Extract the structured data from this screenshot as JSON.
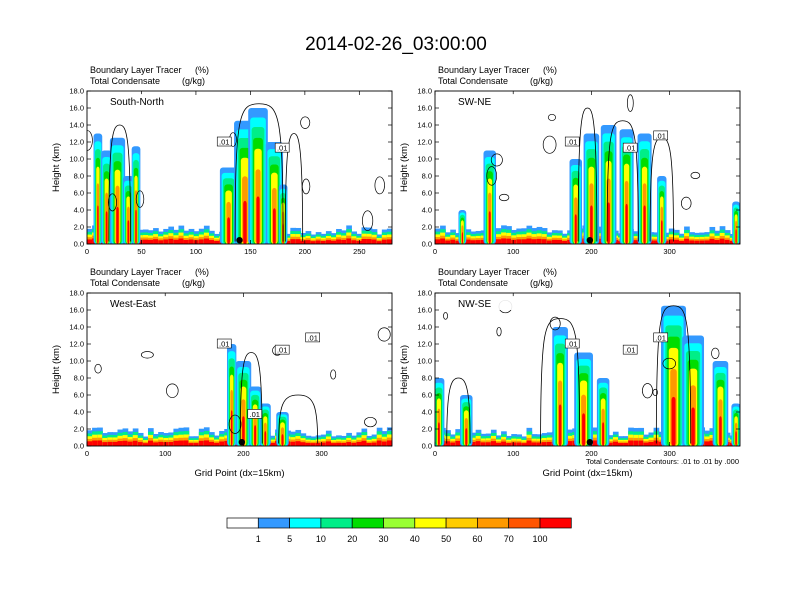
{
  "title": "2014-02-26_03:00:00",
  "chart_data": [
    {
      "type": "heatmap",
      "panel_name": "South-North",
      "subtitle_left_1": "Boundary Layer Tracer",
      "subtitle_right_1": "(%)",
      "subtitle_left_2": "Total Condensate",
      "subtitle_right_2": "(g/kg)",
      "ylabel": "Height (km)",
      "xlabel": "",
      "ylim": [
        0,
        18
      ],
      "xlim": [
        0,
        280
      ],
      "xticks": [
        "0",
        "50",
        "100",
        "150",
        "200",
        "250"
      ],
      "xtick_values": [
        0,
        50,
        100,
        150,
        200,
        250
      ],
      "yticks": [
        "0.0",
        "2.0",
        "4.0",
        "6.0",
        "8.0",
        "10.0",
        "12.0",
        "14.0",
        "16.0",
        "18.0"
      ],
      "contour_labels": [
        ".01",
        ".01"
      ],
      "marker_x": 140,
      "columns": [
        {
          "center": 10,
          "width": 4,
          "top": 13
        },
        {
          "center": 18,
          "width": 5,
          "top": 11
        },
        {
          "center": 28,
          "width": 7,
          "top": 12.5
        },
        {
          "center": 38,
          "width": 5,
          "top": 8
        },
        {
          "center": 45,
          "width": 4,
          "top": 11.5
        },
        {
          "center": 130,
          "width": 8,
          "top": 9
        },
        {
          "center": 145,
          "width": 10,
          "top": 14.5
        },
        {
          "center": 157,
          "width": 9,
          "top": 16
        },
        {
          "center": 172,
          "width": 8,
          "top": 12
        },
        {
          "center": 180,
          "width": 4,
          "top": 7
        }
      ],
      "contour_columns": [
        {
          "center": 158,
          "width": 22,
          "top": 16.5
        },
        {
          "center": 30,
          "width": 10,
          "top": 14
        },
        {
          "center": 190,
          "width": 8,
          "top": 13
        }
      ]
    },
    {
      "type": "heatmap",
      "panel_name": "SW-NE",
      "subtitle_left_1": "Boundary Layer Tracer",
      "subtitle_right_1": "(%)",
      "subtitle_left_2": "Total Condensate",
      "subtitle_right_2": "(g/kg)",
      "ylabel": "Height (km)",
      "xlabel": "",
      "ylim": [
        0,
        18
      ],
      "xlim": [
        0,
        390
      ],
      "xticks": [
        "0",
        "100",
        "200",
        "300"
      ],
      "xtick_values": [
        0,
        100,
        200,
        300
      ],
      "yticks": [
        "0.0",
        "2.0",
        "4.0",
        "6.0",
        "8.0",
        "10.0",
        "12.0",
        "14.0",
        "16.0",
        "18.0"
      ],
      "contour_labels": [
        ".01",
        ".01",
        ".01"
      ],
      "marker_x": 198,
      "columns": [
        {
          "center": 35,
          "width": 5,
          "top": 4
        },
        {
          "center": 70,
          "width": 8,
          "top": 11
        },
        {
          "center": 180,
          "width": 8,
          "top": 10
        },
        {
          "center": 200,
          "width": 10,
          "top": 13
        },
        {
          "center": 222,
          "width": 10,
          "top": 14
        },
        {
          "center": 245,
          "width": 9,
          "top": 13.5
        },
        {
          "center": 268,
          "width": 9,
          "top": 13
        },
        {
          "center": 290,
          "width": 6,
          "top": 8
        },
        {
          "center": 385,
          "width": 5,
          "top": 5
        }
      ],
      "contour_columns": [
        {
          "center": 195,
          "width": 12,
          "top": 16
        },
        {
          "center": 240,
          "width": 20,
          "top": 14.5
        },
        {
          "center": 290,
          "width": 15,
          "top": 12.5
        }
      ]
    },
    {
      "type": "heatmap",
      "panel_name": "West-East",
      "subtitle_left_1": "Boundary Layer Tracer",
      "subtitle_right_1": "(%)",
      "subtitle_left_2": "Total Condensate",
      "subtitle_right_2": "(g/kg)",
      "ylabel": "Height (km)",
      "xlabel": "Grid Point (dx=15km)",
      "ylim": [
        0,
        18
      ],
      "xlim": [
        0,
        390
      ],
      "xticks": [
        "0",
        "100",
        "200",
        "300"
      ],
      "xtick_values": [
        0,
        100,
        200,
        300
      ],
      "yticks": [
        "0.0",
        "2.0",
        "4.0",
        "6.0",
        "8.0",
        "10.0",
        "12.0",
        "14.0",
        "16.0",
        "18.0"
      ],
      "contour_labels": [
        ".01",
        ".01",
        ".01",
        ".01"
      ],
      "marker_x": 198,
      "columns": [
        {
          "center": 185,
          "width": 6,
          "top": 12
        },
        {
          "center": 200,
          "width": 10,
          "top": 10
        },
        {
          "center": 215,
          "width": 8,
          "top": 7
        },
        {
          "center": 228,
          "width": 7,
          "top": 5
        },
        {
          "center": 250,
          "width": 8,
          "top": 4
        }
      ],
      "contour_columns": [
        {
          "center": 210,
          "width": 14,
          "top": 11
        },
        {
          "center": 270,
          "width": 25,
          "top": 6
        }
      ]
    },
    {
      "type": "heatmap",
      "panel_name": "NW-SE",
      "subtitle_left_1": "Boundary Layer Tracer",
      "subtitle_right_1": "(%)",
      "subtitle_left_2": "Total Condensate",
      "subtitle_right_2": "(g/kg)",
      "ylabel": "Height (km)",
      "xlabel": "Grid Point (dx=15km)",
      "ylim": [
        0,
        18
      ],
      "xlim": [
        0,
        390
      ],
      "xticks": [
        "0",
        "100",
        "200",
        "300"
      ],
      "xtick_values": [
        0,
        100,
        200,
        300
      ],
      "yticks": [
        "0.0",
        "2.0",
        "4.0",
        "6.0",
        "8.0",
        "10.0",
        "12.0",
        "14.0",
        "16.0",
        "18.0"
      ],
      "contour_labels": [
        ".01",
        ".01",
        ".01"
      ],
      "marker_x": 198,
      "columns": [
        {
          "center": 5,
          "width": 7,
          "top": 8
        },
        {
          "center": 40,
          "width": 8,
          "top": 6
        },
        {
          "center": 160,
          "width": 10,
          "top": 14
        },
        {
          "center": 190,
          "width": 12,
          "top": 11
        },
        {
          "center": 215,
          "width": 8,
          "top": 8
        },
        {
          "center": 305,
          "width": 16,
          "top": 16.5
        },
        {
          "center": 330,
          "width": 14,
          "top": 13
        },
        {
          "center": 365,
          "width": 10,
          "top": 10
        },
        {
          "center": 385,
          "width": 6,
          "top": 5
        }
      ],
      "contour_columns": [
        {
          "center": 305,
          "width": 22,
          "top": 16.5
        },
        {
          "center": 160,
          "width": 25,
          "top": 15
        },
        {
          "center": 30,
          "width": 15,
          "top": 8
        }
      ]
    }
  ],
  "contour_note": "Total Condensate Contours: .01 to .01 by .000",
  "colorbar": {
    "labels": [
      "1",
      "5",
      "10",
      "20",
      "30",
      "40",
      "50",
      "60",
      "70",
      "100"
    ],
    "colors": [
      "#ffffff",
      "#3399ff",
      "#00ffff",
      "#00ee88",
      "#00dd00",
      "#99ff33",
      "#ffff00",
      "#ffcc00",
      "#ff9900",
      "#ff5500",
      "#ff0000"
    ]
  }
}
